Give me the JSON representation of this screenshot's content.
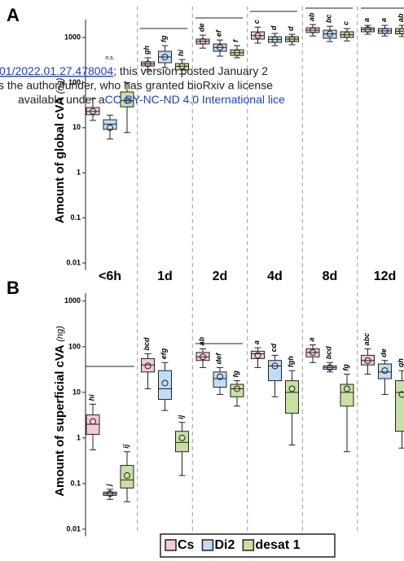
{
  "chart_data": [
    {
      "type": "box",
      "panel": "A",
      "ylabel": "Amount of global cVA ",
      "yunit": "(ng)",
      "log_scale": true,
      "categories": [
        "<6h",
        "1d",
        "2d",
        "4d",
        "8d",
        "12d"
      ],
      "ylim": [
        0.007,
        2500
      ],
      "yticks": [
        1000,
        100,
        10,
        1,
        0.1,
        0.01
      ],
      "annotation": "n.s.",
      "series": [
        {
          "name": "Cs",
          "color": "#f5c9d8",
          "letters": [
            null,
            "gh",
            "de",
            "c",
            "ab",
            "a"
          ],
          "boxes": [
            {
              "low": 14.5,
              "q1": 19.4,
              "median": 23,
              "q3": 28,
              "high": 44,
              "mean": 23
            },
            {
              "low": 190,
              "q1": 234,
              "median": 260,
              "q3": 288,
              "high": 355,
              "mean": 260
            },
            {
              "low": 580,
              "q1": 718,
              "median": 820,
              "q3": 920,
              "high": 1130,
              "mean": 820
            },
            {
              "low": 750,
              "q1": 920,
              "median": 1100,
              "q3": 1336,
              "high": 1700,
              "mean": 1100
            },
            {
              "low": 1080,
              "q1": 1290,
              "median": 1450,
              "q3": 1640,
              "high": 1940,
              "mean": 1450
            },
            {
              "low": 1180,
              "q1": 1340,
              "median": 1500,
              "q3": 1640,
              "high": 1860,
              "mean": 1500
            }
          ]
        },
        {
          "name": "Di2",
          "color": "#bfddf5",
          "letters": [
            null,
            "fg",
            "ef",
            "d",
            "bc",
            "a"
          ],
          "boxes": [
            {
              "low": 5.6,
              "q1": 9.2,
              "median": 12,
              "q3": 15,
              "high": 19,
              "mean": 10
            },
            {
              "low": 215,
              "q1": 276,
              "median": 370,
              "q3": 494,
              "high": 660,
              "mean": 370
            },
            {
              "low": 385,
              "q1": 494,
              "median": 600,
              "q3": 718,
              "high": 880,
              "mean": 600
            },
            {
              "low": 660,
              "q1": 780,
              "median": 900,
              "q3": 1040,
              "high": 1230,
              "mean": 900
            },
            {
              "low": 810,
              "q1": 960,
              "median": 1200,
              "q3": 1450,
              "high": 1780,
              "mean": 1200
            },
            {
              "low": 1080,
              "q1": 1230,
              "median": 1400,
              "q3": 1580,
              "high": 1860,
              "mean": 1400
            }
          ]
        },
        {
          "name": "desat 1",
          "color": "#c9e0a3",
          "letters": [
            null,
            "hi",
            "f",
            "d",
            "c",
            "ab"
          ],
          "boxes": [
            {
              "low": 7.8,
              "q1": 29,
              "median": 40,
              "q3": 62,
              "high": 100,
              "mean": 40
            },
            {
              "low": 155,
              "q1": 190,
              "median": 230,
              "q3": 265,
              "high": 325,
              "mean": 230
            },
            {
              "low": 355,
              "q1": 400,
              "median": 460,
              "q3": 534,
              "high": 660,
              "mean": 460
            },
            {
              "low": 690,
              "q1": 810,
              "median": 920,
              "q3": 1040,
              "high": 1180,
              "mean": 920
            },
            {
              "low": 840,
              "q1": 1000,
              "median": 1150,
              "q3": 1340,
              "high": 1580,
              "mean": 1150
            },
            {
              "low": 1050,
              "q1": 1200,
              "median": 1380,
              "q3": 1580,
              "high": 1860,
              "mean": 1380
            }
          ]
        }
      ]
    },
    {
      "type": "box",
      "panel": "B",
      "ylabel": "Amount of superficial cVA ",
      "yunit": "(ng)",
      "log_scale": true,
      "ylim": [
        0.007,
        1500
      ],
      "yticks": [
        1000,
        100,
        10,
        1,
        0.1,
        0.01
      ],
      "series": [
        {
          "name": "Cs",
          "color": "#f5c9d8",
          "letters": [
            "hi",
            "bcd",
            "ab",
            "a",
            "a",
            "abc"
          ],
          "boxes": [
            {
              "low": 0.55,
              "q1": 1.2,
              "median": 2,
              "q3": 3.2,
              "high": 5.5,
              "mean": 2.3
            },
            {
              "low": 12,
              "q1": 28,
              "median": 40,
              "q3": 55,
              "high": 70,
              "mean": 38
            },
            {
              "low": 35,
              "q1": 50,
              "median": 60,
              "q3": 75,
              "high": 90,
              "mean": 60
            },
            {
              "low": 35,
              "q1": 55,
              "median": 70,
              "q3": 80,
              "high": 95,
              "mean": 65
            },
            {
              "low": 45,
              "q1": 60,
              "median": 75,
              "q3": 90,
              "high": 110,
              "mean": 75
            },
            {
              "low": 25,
              "q1": 40,
              "median": 50,
              "q3": 65,
              "high": 90,
              "mean": 50
            }
          ]
        },
        {
          "name": "Di2",
          "color": "#bfddf5",
          "letters": [
            "j",
            "efg",
            "def",
            "cd",
            "bcd",
            "de"
          ],
          "boxes": [
            {
              "low": 0.045,
              "q1": 0.055,
              "median": 0.06,
              "q3": 0.065,
              "high": 0.075,
              "mean": 0.06
            },
            {
              "low": 4,
              "q1": 7,
              "median": 12,
              "q3": 30,
              "high": 45,
              "mean": 16
            },
            {
              "low": 9,
              "q1": 13,
              "median": 20,
              "q3": 28,
              "high": 35,
              "mean": 22
            },
            {
              "low": 8,
              "q1": 18,
              "median": 38,
              "q3": 50,
              "high": 65,
              "mean": 38
            },
            {
              "low": 28,
              "q1": 32,
              "median": 35,
              "q3": 38,
              "high": 45,
              "mean": 35
            },
            {
              "low": 9,
              "q1": 20,
              "median": 28,
              "q3": 42,
              "high": 50,
              "mean": 30
            }
          ]
        },
        {
          "name": "desat 1",
          "color": "#c9e0a3",
          "letters": [
            "ij",
            "ij",
            "fg",
            "fgh",
            "fg",
            "gh"
          ],
          "boxes": [
            {
              "low": 0.04,
              "q1": 0.08,
              "median": 0.12,
              "q3": 0.25,
              "high": 0.5,
              "mean": 0.15
            },
            {
              "low": 0.15,
              "q1": 0.5,
              "median": 0.8,
              "q3": 1.4,
              "high": 2.2,
              "mean": 1
            },
            {
              "low": 5,
              "q1": 8,
              "median": 12,
              "q3": 15,
              "high": 18,
              "mean": 12
            },
            {
              "low": 0.7,
              "q1": 3.5,
              "median": 10,
              "q3": 18,
              "high": 30,
              "mean": 12
            },
            {
              "low": 0.5,
              "q1": 5,
              "median": 10,
              "q3": 15,
              "high": 25,
              "mean": 12
            },
            {
              "low": 0.6,
              "q1": 1.4,
              "median": 10,
              "q3": 18,
              "high": 30,
              "mean": 9
            }
          ]
        }
      ]
    }
  ],
  "watermark": {
    "line1": [
      "01/2022.01.27.478004",
      "; this version posted January 2"
    ],
    "line2": "s the author/funder, who has granted bioRxiv a license",
    "line3": [
      "available under a",
      "CC-BY-NC-ND 4.0 International lice"
    ]
  }
}
